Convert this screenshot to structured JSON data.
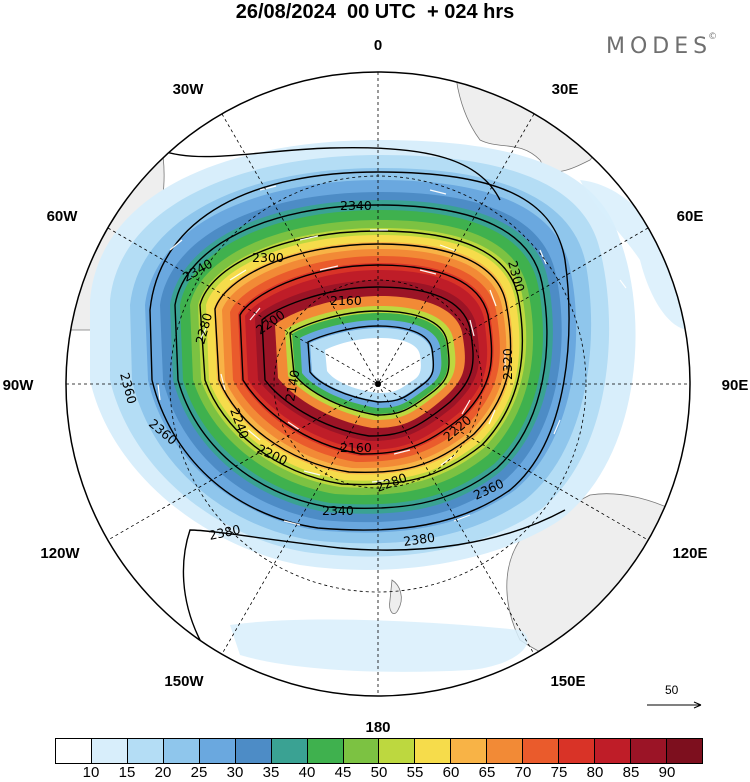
{
  "header": {
    "title": "26/08/2024  00 UTC  + 024 hrs",
    "brand": "MODES",
    "brand_mark": "©"
  },
  "map": {
    "projection": "south polar stereographic",
    "longitude_labels": {
      "top": "0",
      "top_right": "30E",
      "upper_right": "60E",
      "right": "90E",
      "lower_right": "120E",
      "bottom_right": "150E",
      "bottom": "180",
      "bottom_left": "150W",
      "lower_left": "120W",
      "left": "90W",
      "upper_left": "60W",
      "top_left": "30W"
    },
    "contour_labels": [
      "2340",
      "2300",
      "2340",
      "2280",
      "2200",
      "2160",
      "2140",
      "2240",
      "2200",
      "2160",
      "2220",
      "2280",
      "2340",
      "2360",
      "2380",
      "2380",
      "2360",
      "2360",
      "2300",
      "2320"
    ],
    "contour_levels": [
      2140,
      2160,
      2200,
      2240,
      2280,
      2300,
      2340,
      2360,
      2380
    ],
    "shading_colors": [
      "#ffffff",
      "#d8eefb",
      "#b4ddf5",
      "#8fc6ec",
      "#6aa8df",
      "#4d8cc6",
      "#3aa293",
      "#3fb14e",
      "#7cc242",
      "#bdd83f",
      "#f6dc4b",
      "#f8b346",
      "#f28a36",
      "#ea5b2c",
      "#d93327",
      "#bf1d28",
      "#9b1426"
    ],
    "reference_vector": "50"
  },
  "colorbar": {
    "colors": [
      "#ffffff",
      "#d8eefb",
      "#b4ddf5",
      "#8fc6ec",
      "#6aa8df",
      "#4d8cc6",
      "#3aa293",
      "#3fb14e",
      "#7cc242",
      "#bdd83f",
      "#f6dc4b",
      "#f8b346",
      "#f28a36",
      "#ea5b2c",
      "#d93327",
      "#bf1d28",
      "#9b1426",
      "#7d0f1e"
    ],
    "labels": [
      "10",
      "15",
      "20",
      "25",
      "30",
      "35",
      "40",
      "45",
      "50",
      "55",
      "60",
      "65",
      "70",
      "75",
      "80",
      "85",
      "90"
    ]
  }
}
